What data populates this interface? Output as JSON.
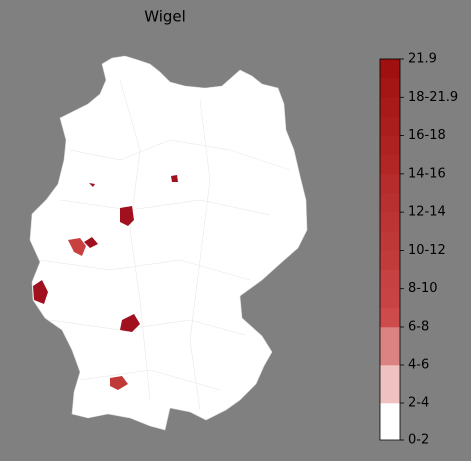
{
  "title": "Wigel",
  "colorbar": {
    "labels": [
      "0-2",
      "2-4",
      "4-6",
      "6-8",
      "8-10",
      "10-12",
      "12-14",
      "14-16",
      "16-18",
      "18-21.9",
      "21.9"
    ],
    "colors": [
      [
        "#ffffff"
      ],
      [
        "#efc1c1"
      ],
      [
        "#db8383"
      ],
      [
        "#cd4b4b",
        "#c84444"
      ],
      [
        "#c64242",
        "#c23b3b"
      ],
      [
        "#bf3838",
        "#bc3434"
      ],
      [
        "#b93030",
        "#b62b2b"
      ],
      [
        "#b22626",
        "#af2222"
      ],
      [
        "#ab1e1e",
        "#a81a1a"
      ],
      [
        "#a41515",
        "#a01010"
      ]
    ]
  }
}
